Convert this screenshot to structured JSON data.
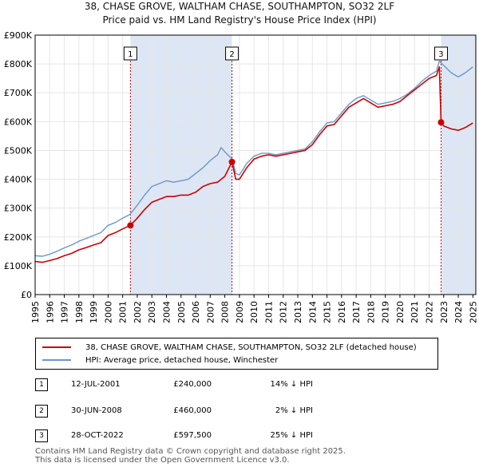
{
  "title_line1": "38, CHASE GROVE, WALTHAM CHASE, SOUTHAMPTON, SO32 2LF",
  "title_line2": "Price paid vs. HM Land Registry's House Price Index (HPI)",
  "colors": {
    "property": "#cc0000",
    "hpi": "#6a96cc",
    "shade": "#dde6f4",
    "grid": "#e6e6e6"
  },
  "legend": {
    "property": "38, CHASE GROVE, WALTHAM CHASE, SOUTHAMPTON, SO32 2LF (detached house)",
    "hpi": "HPI: Average price, detached house, Winchester"
  },
  "sales": [
    {
      "num": "1",
      "date": "12-JUL-2001",
      "price": "£240,000",
      "pct": "14% ↓ HPI"
    },
    {
      "num": "2",
      "date": "30-JUN-2008",
      "price": "£460,000",
      "pct": "2% ↓ HPI"
    },
    {
      "num": "3",
      "date": "28-OCT-2022",
      "price": "£597,500",
      "pct": "25% ↓ HPI"
    }
  ],
  "footer_line1": "Contains HM Land Registry data © Crown copyright and database right 2025.",
  "footer_line2": "This data is licensed under the Open Government Licence v3.0.",
  "chart_data": {
    "type": "line",
    "title": "38, CHASE GROVE, WALTHAM CHASE, SOUTHAMPTON, SO32 2LF — Price paid vs. HM Land Registry's House Price Index (HPI)",
    "xlim": [
      1995,
      2025.2
    ],
    "ylim": [
      0,
      900000
    ],
    "x_ticks": [
      1995,
      1996,
      1997,
      1998,
      1999,
      2000,
      2001,
      2002,
      2003,
      2004,
      2005,
      2006,
      2007,
      2008,
      2009,
      2010,
      2011,
      2012,
      2013,
      2014,
      2015,
      2016,
      2017,
      2018,
      2019,
      2020,
      2021,
      2022,
      2023,
      2024,
      2025
    ],
    "y_ticks": [
      0,
      100000,
      200000,
      300000,
      400000,
      500000,
      600000,
      700000,
      800000,
      900000
    ],
    "y_tick_labels": [
      "£0",
      "£100K",
      "£200K",
      "£300K",
      "£400K",
      "£500K",
      "£600K",
      "£700K",
      "£800K",
      "£900K"
    ],
    "shaded_regions": [
      [
        2001.53,
        2008.49
      ],
      [
        2022.82,
        2025.2
      ]
    ],
    "sale_markers": [
      {
        "label": "1",
        "x": 2001.53,
        "y": 240000
      },
      {
        "label": "2",
        "x": 2008.49,
        "y": 460000
      },
      {
        "label": "3",
        "x": 2022.82,
        "y": 597500
      }
    ],
    "series": [
      {
        "name": "HPI: Average price, detached house, Winchester",
        "x": [
          1995,
          1995.5,
          1996,
          1996.5,
          1997,
          1997.5,
          1998,
          1998.5,
          1999,
          1999.5,
          2000,
          2000.5,
          2001,
          2001.5,
          2002,
          2002.5,
          2003,
          2003.5,
          2004,
          2004.5,
          2005,
          2005.5,
          2006,
          2006.5,
          2007,
          2007.5,
          2007.75,
          2008,
          2008.5,
          2008.75,
          2009,
          2009.5,
          2010,
          2010.5,
          2011,
          2011.5,
          2012,
          2012.5,
          2013,
          2013.5,
          2014,
          2014.5,
          2015,
          2015.5,
          2016,
          2016.5,
          2017,
          2017.5,
          2018,
          2018.5,
          2019,
          2019.5,
          2020,
          2020.5,
          2021,
          2021.5,
          2022,
          2022.5,
          2022.7,
          2023,
          2023.5,
          2024,
          2024.5,
          2025
        ],
        "y": [
          135000,
          133000,
          140000,
          150000,
          162000,
          172000,
          185000,
          195000,
          205000,
          215000,
          240000,
          250000,
          265000,
          278000,
          310000,
          345000,
          375000,
          385000,
          395000,
          390000,
          395000,
          400000,
          420000,
          440000,
          465000,
          485000,
          510000,
          495000,
          470000,
          420000,
          415000,
          455000,
          480000,
          490000,
          490000,
          485000,
          490000,
          495000,
          500000,
          505000,
          530000,
          565000,
          595000,
          600000,
          630000,
          660000,
          680000,
          690000,
          675000,
          660000,
          665000,
          670000,
          680000,
          695000,
          715000,
          740000,
          760000,
          775000,
          810000,
          795000,
          770000,
          755000,
          770000,
          790000
        ]
      },
      {
        "name": "38, CHASE GROVE, WALTHAM CHASE, SOUTHAMPTON, SO32 2LF (detached house)",
        "x": [
          1995,
          1995.5,
          1996,
          1996.5,
          1997,
          1997.5,
          1998,
          1998.5,
          1999,
          1999.5,
          2000,
          2000.5,
          2001,
          2001.53,
          2002,
          2002.5,
          2003,
          2003.5,
          2004,
          2004.5,
          2005,
          2005.5,
          2006,
          2006.5,
          2007,
          2007.5,
          2007.75,
          2008,
          2008.49,
          2008.75,
          2009,
          2009.5,
          2010,
          2010.5,
          2011,
          2011.5,
          2012,
          2012.5,
          2013,
          2013.5,
          2014,
          2014.5,
          2015,
          2015.5,
          2016,
          2016.5,
          2017,
          2017.5,
          2018,
          2018.5,
          2019,
          2019.5,
          2020,
          2020.5,
          2021,
          2021.5,
          2022,
          2022.5,
          2022.7,
          2022.82,
          2023,
          2023.5,
          2024,
          2024.5,
          2025
        ],
        "y": [
          115000,
          112000,
          118000,
          125000,
          135000,
          143000,
          155000,
          163000,
          172000,
          180000,
          205000,
          215000,
          228000,
          240000,
          265000,
          295000,
          320000,
          330000,
          340000,
          340000,
          345000,
          345000,
          355000,
          375000,
          385000,
          390000,
          400000,
          410000,
          460000,
          400000,
          400000,
          440000,
          470000,
          480000,
          485000,
          480000,
          485000,
          490000,
          495000,
          500000,
          520000,
          555000,
          585000,
          590000,
          620000,
          650000,
          665000,
          680000,
          665000,
          650000,
          655000,
          660000,
          670000,
          690000,
          710000,
          730000,
          750000,
          760000,
          790000,
          597500,
          585000,
          575000,
          570000,
          580000,
          595000
        ]
      }
    ]
  }
}
